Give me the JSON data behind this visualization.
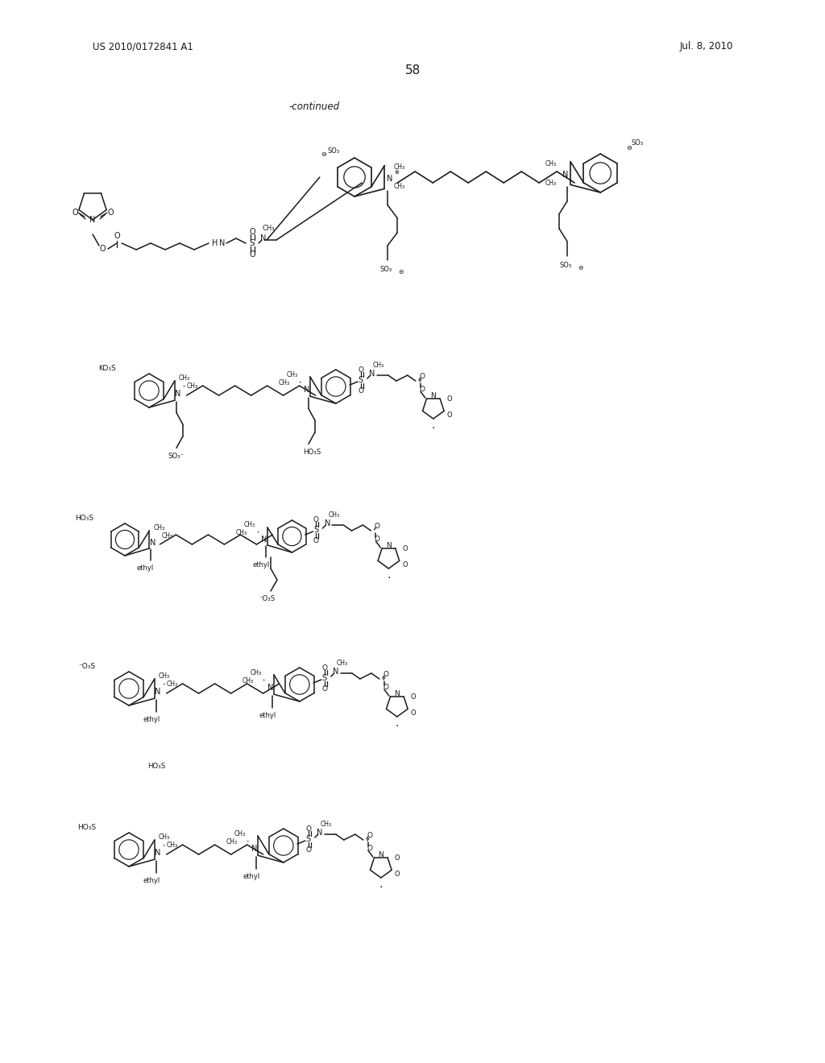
{
  "page_number": "58",
  "left_header": "US 2010/0172841 A1",
  "right_header": "Jul. 8, 2010",
  "continued_label": "-continued",
  "background_color": "#ffffff",
  "text_color": "#1a1a1a",
  "line_color": "#1a1a1a",
  "figsize": [
    10.24,
    13.2
  ],
  "dpi": 100
}
